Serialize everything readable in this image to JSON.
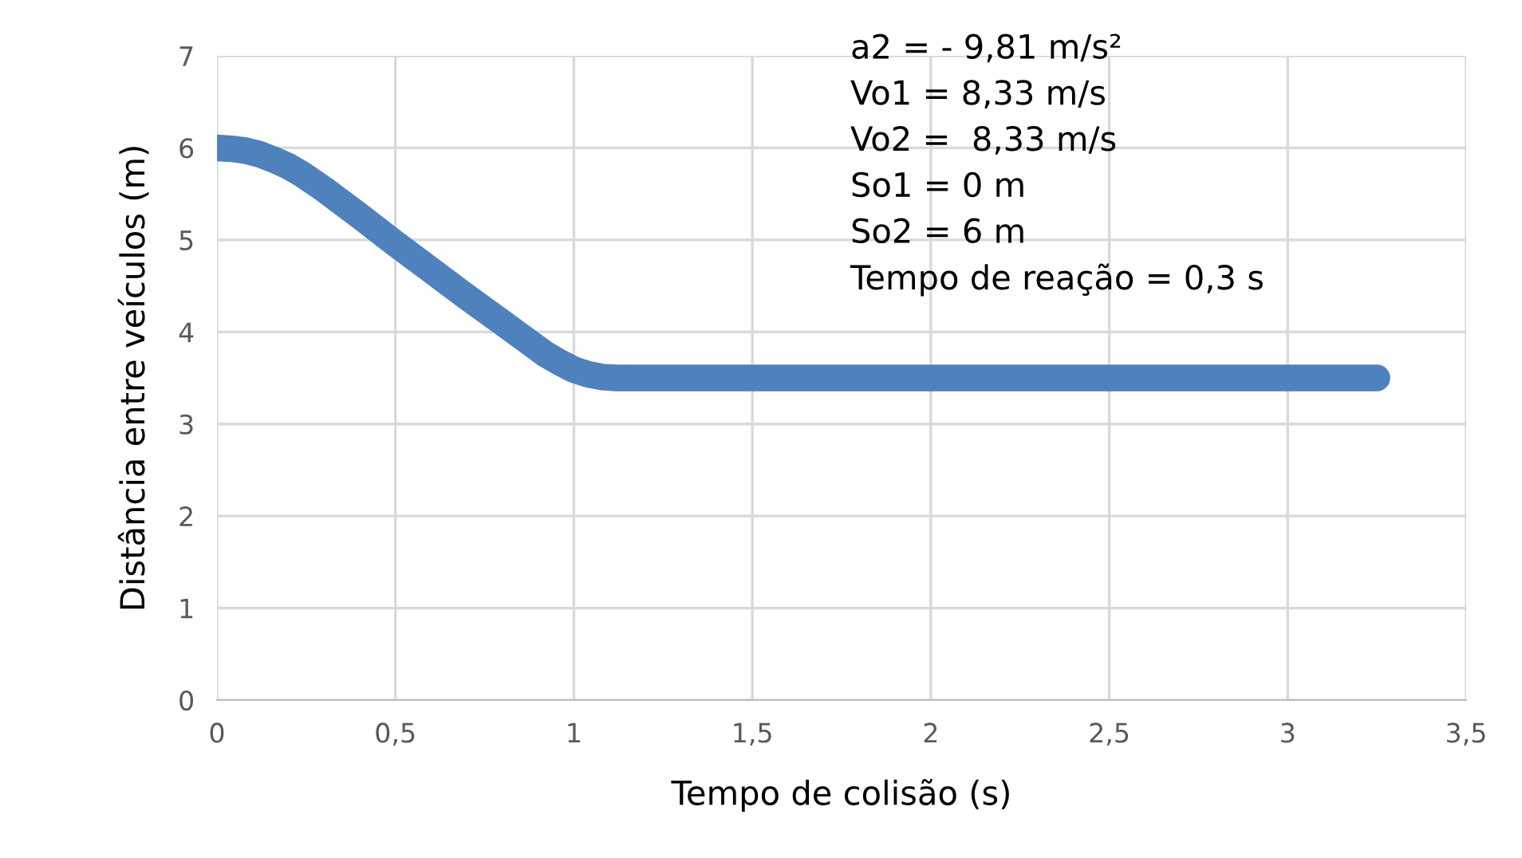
{
  "chart_data": {
    "type": "line",
    "xlabel": "Tempo de colisão (s)",
    "ylabel": "Distância entre veículos (m)",
    "series": [
      {
        "color": "#4f81bd",
        "x": [
          0,
          0.04,
          0.08,
          0.12,
          0.16,
          0.2,
          0.24,
          0.3,
          0.4,
          0.5,
          0.6,
          0.7,
          0.8,
          0.86,
          0.92,
          0.96,
          1.0,
          1.04,
          1.08,
          1.12,
          1.5,
          2,
          2.5,
          3,
          3.25
        ],
        "values": [
          6.0,
          5.99,
          5.97,
          5.93,
          5.87,
          5.8,
          5.71,
          5.55,
          5.26,
          4.96,
          4.67,
          4.38,
          4.1,
          3.93,
          3.76,
          3.67,
          3.59,
          3.54,
          3.51,
          3.5,
          3.5,
          3.5,
          3.5,
          3.5,
          3.5
        ]
      }
    ],
    "xlim": [
      0,
      3.5
    ],
    "xticks": [
      0,
      {
        "value": 0.5,
        "label": "0,5"
      },
      1,
      {
        "value": 1.5,
        "label": "1,5"
      },
      2,
      {
        "value": 2.5,
        "label": "2,5"
      },
      3,
      {
        "value": 3.5,
        "label": "3,5"
      }
    ],
    "ylim": [
      0,
      7
    ],
    "yticks": [
      0,
      1,
      2,
      3,
      4,
      5,
      6,
      7
    ],
    "grid": true,
    "line_style": "solid",
    "annotations": [
      "a2 = - 9,81 m/s²",
      "Vo1 = 8,33 m/s",
      "Vo2 =  8,33 m/s",
      "So1 = 0 m",
      "So2 = 6 m",
      "Tempo de reação = 0,3 s"
    ]
  }
}
